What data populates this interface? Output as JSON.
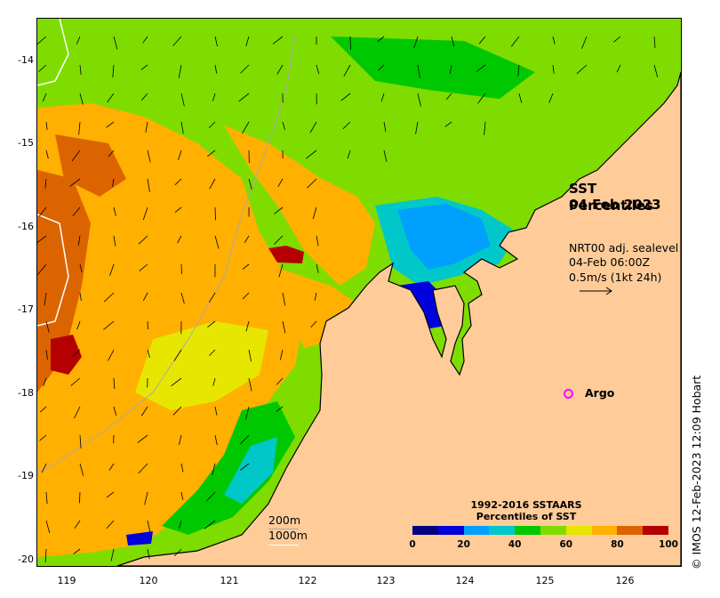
{
  "title": {
    "line1": "SST Percentiles",
    "line2": "04 Feb 2023"
  },
  "current_legend": {
    "source": "NRT00 adj. sealevel",
    "time": "04-Feb 06:00Z",
    "scale": "0.5m/s (1kt 24h)"
  },
  "argo_label": "Argo",
  "contours": {
    "label_200": "200m",
    "label_1000": "1000m"
  },
  "colorbar": {
    "title_line1": "1992-2016 SSTAARS",
    "title_line2": "Percentiles of SST",
    "ticks": [
      "0",
      "20",
      "40",
      "60",
      "80",
      "100"
    ],
    "colors": [
      "#00007f",
      "#0000dc",
      "#00a0ff",
      "#00c8c8",
      "#00c800",
      "#7fdc00",
      "#e6e600",
      "#ffb000",
      "#dc6400",
      "#b40000"
    ]
  },
  "axes": {
    "y_ticks": [
      "-14",
      "-15",
      "-16",
      "-17",
      "-18",
      "-19",
      "-20"
    ],
    "x_ticks": [
      "119",
      "120",
      "121",
      "122",
      "123",
      "124",
      "125",
      "126"
    ]
  },
  "credit": "© IMOS 12-Feb-2023 12:09 Hobart",
  "colors": {
    "land": "#ffcc99",
    "argo": "#ff00ff"
  }
}
